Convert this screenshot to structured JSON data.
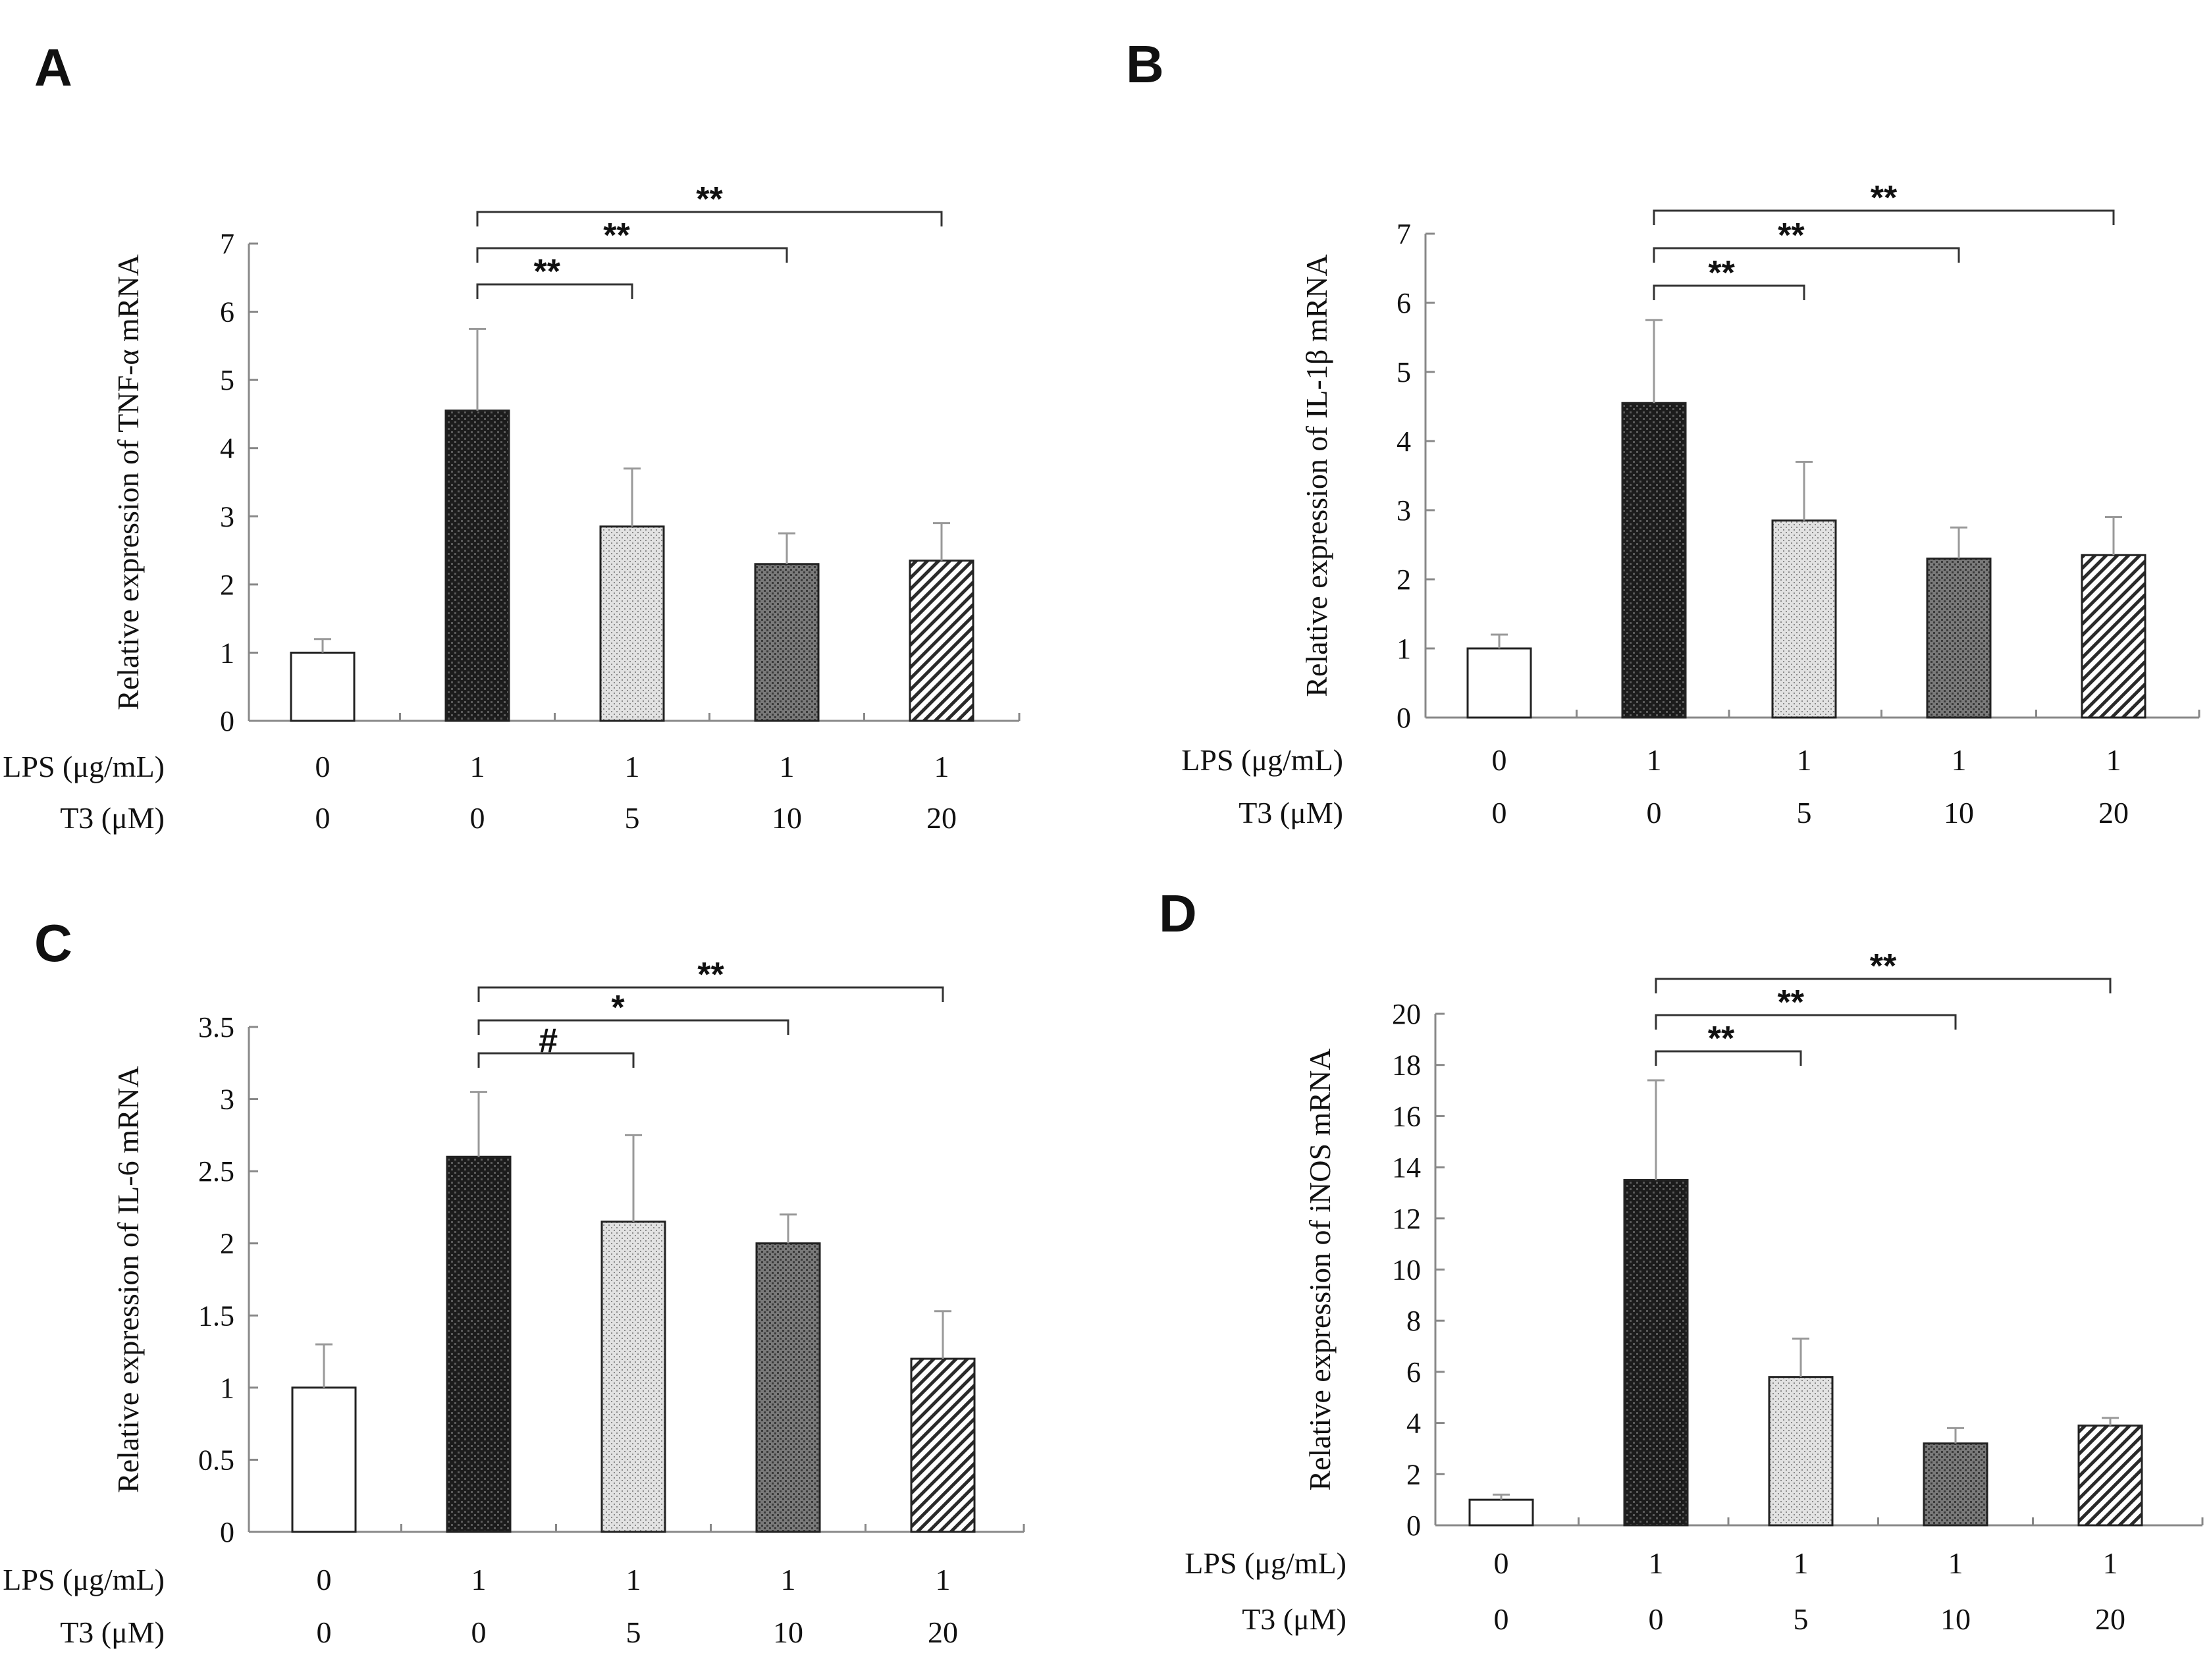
{
  "figure": {
    "row_labels": {
      "lps": "LPS (μg/mL)",
      "t3": "T3 (μM)"
    },
    "lps_values": [
      "0",
      "1",
      "1",
      "1",
      "1"
    ],
    "t3_values": [
      "0",
      "0",
      "5",
      "10",
      "20"
    ],
    "fills": [
      "white",
      "dark",
      "light",
      "medium",
      "hatch"
    ]
  },
  "chart_data": [
    {
      "panel": "A",
      "type": "bar",
      "categories": [
        "0 / 0",
        "1 / 0",
        "1 / 5",
        "1 / 10",
        "1 / 20"
      ],
      "values": [
        1.0,
        4.55,
        2.85,
        2.3,
        2.35
      ],
      "errors": [
        0.2,
        1.2,
        0.85,
        0.45,
        0.55
      ],
      "ylabel": "Relative expression of  TNF-α mRNA",
      "ylim": [
        0,
        7
      ],
      "yticks": [
        0,
        1,
        2,
        3,
        4,
        5,
        6,
        7
      ],
      "ytick_labels": [
        "0",
        "1",
        "2",
        "3",
        "4",
        "5",
        "6",
        "7"
      ],
      "significance": [
        {
          "from": 1,
          "to": 2,
          "label": "**"
        },
        {
          "from": 1,
          "to": 3,
          "label": "**"
        },
        {
          "from": 1,
          "to": 4,
          "label": "**"
        }
      ]
    },
    {
      "panel": "B",
      "type": "bar",
      "categories": [
        "0 / 0",
        "1 / 0",
        "1 / 5",
        "1 / 10",
        "1 / 20"
      ],
      "values": [
        1.0,
        4.55,
        2.85,
        2.3,
        2.35
      ],
      "errors": [
        0.2,
        1.2,
        0.85,
        0.45,
        0.55
      ],
      "ylabel": "Relative expression of  IL-1β mRNA",
      "ylim": [
        0,
        7
      ],
      "yticks": [
        0,
        1,
        2,
        3,
        4,
        5,
        6,
        7
      ],
      "ytick_labels": [
        "0",
        "1",
        "2",
        "3",
        "4",
        "5",
        "6",
        "7"
      ],
      "significance": [
        {
          "from": 1,
          "to": 2,
          "label": "**"
        },
        {
          "from": 1,
          "to": 3,
          "label": "**"
        },
        {
          "from": 1,
          "to": 4,
          "label": "**"
        }
      ]
    },
    {
      "panel": "C",
      "type": "bar",
      "categories": [
        "0 / 0",
        "1 / 0",
        "1 / 5",
        "1 / 10",
        "1 / 20"
      ],
      "values": [
        1.0,
        2.6,
        2.15,
        2.0,
        1.2
      ],
      "errors": [
        0.3,
        0.45,
        0.6,
        0.2,
        0.33
      ],
      "ylabel": "Relative expression of IL-6 mRNA",
      "ylim": [
        0,
        3.5
      ],
      "yticks": [
        0,
        0.5,
        1,
        1.5,
        2,
        2.5,
        3,
        3.5
      ],
      "ytick_labels": [
        "0",
        "0.5",
        "1",
        "1.5",
        "2",
        "2.5",
        "3",
        "3.5"
      ],
      "significance": [
        {
          "from": 1,
          "to": 2,
          "label": "#"
        },
        {
          "from": 1,
          "to": 3,
          "label": "*"
        },
        {
          "from": 1,
          "to": 4,
          "label": "**"
        }
      ]
    },
    {
      "panel": "D",
      "type": "bar",
      "categories": [
        "0 / 0",
        "1 / 0",
        "1 / 5",
        "1 / 10",
        "1 / 20"
      ],
      "values": [
        1.0,
        13.5,
        5.8,
        3.2,
        3.9
      ],
      "errors": [
        0.2,
        3.9,
        1.5,
        0.6,
        0.3
      ],
      "ylabel": "Relative expression of iNOS mRNA",
      "ylim": [
        0,
        20
      ],
      "yticks": [
        0,
        2,
        4,
        6,
        8,
        10,
        12,
        14,
        16,
        18,
        20
      ],
      "ytick_labels": [
        "0",
        "2",
        "4",
        "6",
        "8",
        "10",
        "12",
        "14",
        "16",
        "18",
        "20"
      ],
      "significance": [
        {
          "from": 1,
          "to": 2,
          "label": "**"
        },
        {
          "from": 1,
          "to": 3,
          "label": "**"
        },
        {
          "from": 1,
          "to": 4,
          "label": "**"
        }
      ]
    }
  ]
}
